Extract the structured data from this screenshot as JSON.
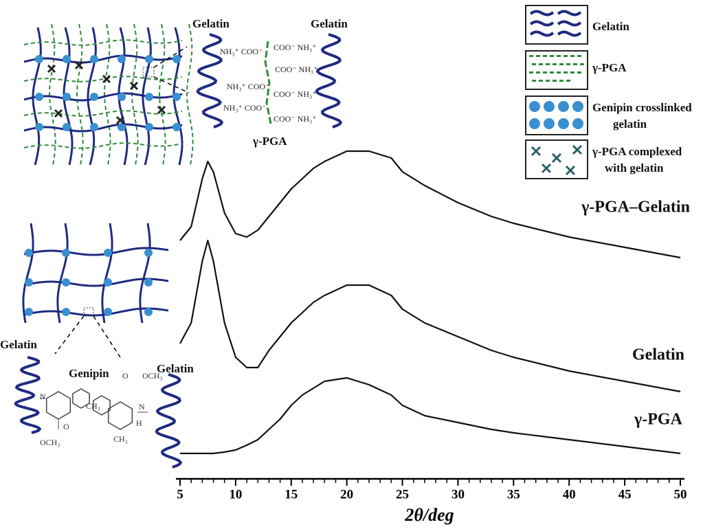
{
  "chart_data": {
    "type": "line",
    "x_label": "2θ/deg",
    "x": [
      5,
      6,
      7,
      7.5,
      8,
      9,
      10,
      11,
      12,
      13,
      14,
      15,
      16,
      17,
      18,
      20,
      22,
      24,
      25,
      27,
      30,
      33,
      35,
      40,
      45,
      50
    ],
    "series": [
      {
        "name": "γ-PGA–Gelatin",
        "color": "#111111",
        "values": [
          70,
          74,
          88,
          93,
          90,
          78,
          72,
          71,
          73,
          77,
          81,
          85,
          88,
          91,
          93,
          96,
          96,
          94,
          90,
          86,
          81,
          77,
          75,
          71,
          68,
          65
        ]
      },
      {
        "name": "Gelatin",
        "color": "#111111",
        "values": [
          40,
          46,
          64,
          70,
          64,
          46,
          36,
          33,
          33,
          38,
          42,
          46,
          49,
          52,
          54,
          57,
          57,
          54,
          50,
          46,
          42,
          38,
          36,
          32,
          29,
          26
        ]
      },
      {
        "name": "γ-PGA",
        "color": "#111111",
        "values": [
          8,
          8,
          8,
          8,
          8,
          8.4,
          9,
          10.4,
          12,
          15,
          18,
          22,
          25,
          27,
          29,
          30,
          28,
          25,
          22,
          19,
          17,
          15,
          14,
          12,
          10,
          8
        ]
      }
    ],
    "xlim": [
      5,
      50
    ],
    "xticks": [
      5,
      10,
      15,
      20,
      25,
      30,
      35,
      40,
      45,
      50
    ],
    "ylim": [
      0,
      100
    ],
    "annotations": {
      "top_gelatin_left": "Gelatin",
      "top_gelatin_right": "Gelatin",
      "top_pga": "γ-PGA",
      "ion_left": [
        "NH₃⁺ COO⁻",
        "NH₃⁺ COO⁻",
        "NH₃⁺ COO⁻"
      ],
      "ion_right": [
        "COO⁻ NH₃⁺",
        "COO⁻ NH₃⁺",
        "COO⁻ NH₃⁺",
        "COO⁻ NH₃⁺"
      ],
      "legend": [
        [
          "Gelatin"
        ],
        [
          "γ-PGA"
        ],
        [
          "Genipin crosslinked",
          "gelatin"
        ],
        [
          "γ-PGA complexed",
          "with gelatin"
        ]
      ],
      "bottom_gelatin_left": "Gelatin",
      "genipin": "Genipin",
      "bottom_gelatin_right": "Gelatin",
      "chem": [
        "N",
        "N",
        "H",
        "CH₃",
        "CH₃",
        "O",
        "OCH₃",
        "O",
        "OCH₃"
      ]
    }
  }
}
